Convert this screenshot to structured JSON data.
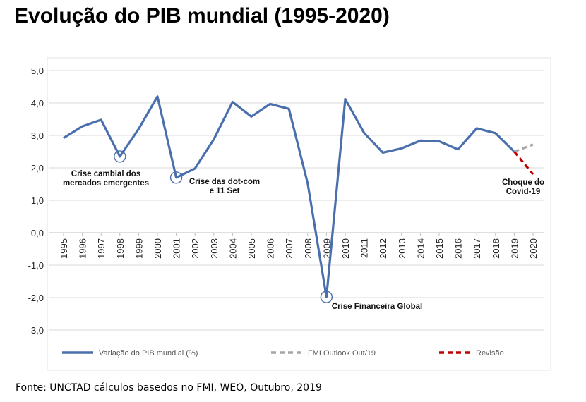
{
  "title": "Evolução do PIB mundial (1995-2020)",
  "source": "Fonte: UNCTAD cálculos basedos no FMI, WEO, Outubro, 2019",
  "colors": {
    "main": "#4a6fad",
    "imf": "#a6a6a6",
    "revision": "#c00000",
    "grid": "#d9d9d9"
  },
  "chart_data": {
    "type": "line",
    "x": [
      "1995",
      "1996",
      "1997",
      "1998",
      "1999",
      "2000",
      "2001",
      "2002",
      "2003",
      "2004",
      "2005",
      "2006",
      "2007",
      "2008",
      "2009",
      "2010",
      "2011",
      "2012",
      "2013",
      "2014",
      "2015",
      "2016",
      "2017",
      "2018",
      "2019",
      "2020"
    ],
    "ylim": [
      -3.0,
      5.0
    ],
    "yticks": [
      "5,0",
      "4,0",
      "3,0",
      "2,0",
      "1,0",
      "0,0",
      "-1,0",
      "-2,0",
      "-3,0"
    ],
    "ytick_values": [
      5,
      4,
      3,
      2,
      1,
      0,
      -1,
      -2,
      -3
    ],
    "grid": true,
    "legend_position": "bottom",
    "series": [
      {
        "name": "Variação do PIB mundial (%)",
        "values": [
          2.92,
          3.28,
          3.48,
          2.35,
          3.2,
          4.2,
          1.7,
          1.98,
          2.88,
          4.03,
          3.58,
          3.97,
          3.82,
          1.52,
          -1.98,
          4.12,
          3.08,
          2.47,
          2.6,
          2.84,
          2.82,
          2.57,
          3.22,
          3.07,
          2.5,
          null
        ]
      },
      {
        "name": "FMI Outlook Out/19",
        "values": [
          null,
          null,
          null,
          null,
          null,
          null,
          null,
          null,
          null,
          null,
          null,
          null,
          null,
          null,
          null,
          null,
          null,
          null,
          null,
          null,
          null,
          null,
          null,
          null,
          2.5,
          2.72
        ]
      },
      {
        "name": "Revisão",
        "values": [
          null,
          null,
          null,
          null,
          null,
          null,
          null,
          null,
          null,
          null,
          null,
          null,
          null,
          null,
          null,
          null,
          null,
          null,
          null,
          null,
          null,
          null,
          null,
          null,
          2.5,
          1.8
        ]
      }
    ],
    "annotations": [
      {
        "lines": [
          "Crise cambial dos",
          "mercados emergentes"
        ],
        "x": "1998",
        "y": 2.35
      },
      {
        "lines": [
          "Crise das dot-com",
          "e 11 Set"
        ],
        "x": "2001",
        "y": 1.7
      },
      {
        "lines": [
          "Crise Financeira Global"
        ],
        "x": "2009",
        "y": -1.98
      },
      {
        "lines": [
          "Choque do",
          "Covid-19"
        ],
        "x": "2020",
        "y": 1.8
      }
    ]
  }
}
